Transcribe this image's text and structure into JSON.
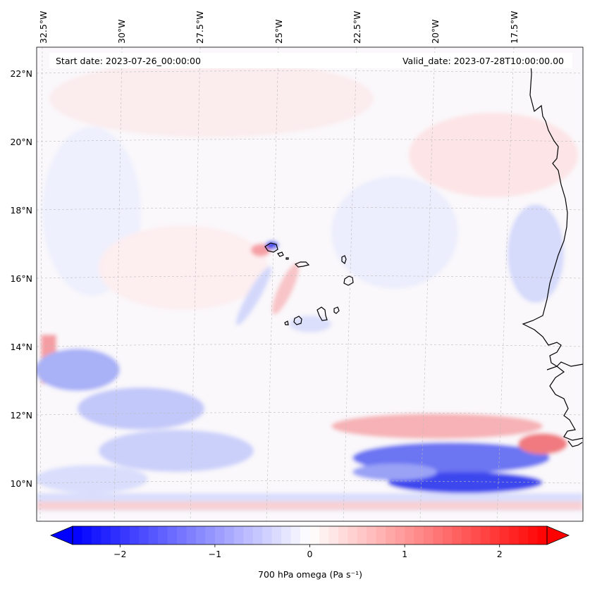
{
  "map": {
    "start_date": "Start date: 2023-07-26_00:00:00",
    "valid_date": "Valid_date: 2023-07-28T10:00:00.00",
    "lon_labels": [
      "32.5°W",
      "30°W",
      "27.5°W",
      "25°W",
      "22.5°W",
      "20°W",
      "17.5°W"
    ],
    "lat_labels": [
      "22°N",
      "20°N",
      "18°N",
      "16°N",
      "14°N",
      "12°N",
      "10°N"
    ],
    "lon_range": [
      -33.0,
      -16.0
    ],
    "lat_range": [
      8.9,
      22.8
    ],
    "colors": {
      "negative": "#0000ff",
      "zero": "#ffffff",
      "positive": "#ff0000",
      "coastline": "#000000",
      "gridline": "#bbbbbb"
    }
  },
  "colorbar": {
    "label": "700 hPa omega (Pa s⁻¹)",
    "tick_labels": [
      "−2",
      "−1",
      "0",
      "1",
      "2"
    ],
    "ticks": [
      -2,
      -1,
      0,
      1,
      2
    ],
    "range": [
      -2.5,
      2.5
    ],
    "extend": "both"
  }
}
